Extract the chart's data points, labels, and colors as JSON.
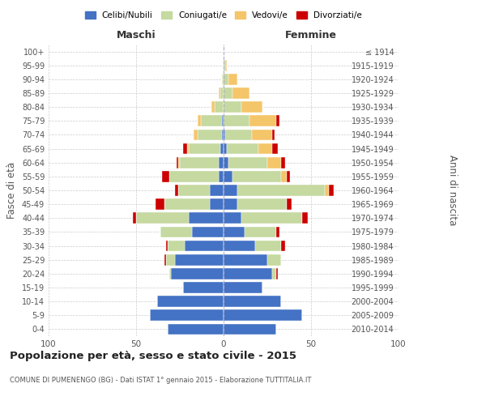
{
  "age_groups": [
    "0-4",
    "5-9",
    "10-14",
    "15-19",
    "20-24",
    "25-29",
    "30-34",
    "35-39",
    "40-44",
    "45-49",
    "50-54",
    "55-59",
    "60-64",
    "65-69",
    "70-74",
    "75-79",
    "80-84",
    "85-89",
    "90-94",
    "95-99",
    "100+"
  ],
  "birth_years": [
    "2010-2014",
    "2005-2009",
    "2000-2004",
    "1995-1999",
    "1990-1994",
    "1985-1989",
    "1980-1984",
    "1975-1979",
    "1970-1974",
    "1965-1969",
    "1960-1964",
    "1955-1959",
    "1950-1954",
    "1945-1949",
    "1940-1944",
    "1935-1939",
    "1930-1934",
    "1925-1929",
    "1920-1924",
    "1915-1919",
    "≤ 1914"
  ],
  "colors": {
    "celibi": "#4472c4",
    "coniugati": "#c5d9a0",
    "vedovi": "#f5c56a",
    "divorziati": "#cc0000",
    "background": "#ffffff",
    "grid": "#cccccc",
    "dashed_line": "#aaaacc"
  },
  "maschi": {
    "celibi": [
      32,
      42,
      38,
      23,
      30,
      28,
      22,
      18,
      20,
      8,
      8,
      3,
      3,
      2,
      1,
      1,
      0,
      0,
      0,
      0,
      0
    ],
    "coniugati": [
      0,
      0,
      0,
      0,
      1,
      5,
      10,
      18,
      30,
      26,
      18,
      28,
      22,
      18,
      14,
      12,
      5,
      2,
      1,
      0,
      0
    ],
    "vedovi": [
      0,
      0,
      0,
      0,
      0,
      0,
      0,
      0,
      0,
      0,
      0,
      0,
      1,
      1,
      2,
      2,
      2,
      1,
      0,
      0,
      0
    ],
    "divorziati": [
      0,
      0,
      0,
      0,
      0,
      1,
      1,
      0,
      2,
      5,
      2,
      4,
      1,
      2,
      0,
      0,
      0,
      0,
      0,
      0,
      0
    ]
  },
  "femmine": {
    "celibi": [
      30,
      45,
      33,
      22,
      28,
      25,
      18,
      12,
      10,
      8,
      8,
      5,
      3,
      2,
      1,
      0,
      0,
      0,
      0,
      0,
      0
    ],
    "coniugati": [
      0,
      0,
      0,
      0,
      2,
      8,
      15,
      18,
      35,
      28,
      50,
      28,
      22,
      18,
      15,
      15,
      10,
      5,
      3,
      1,
      0
    ],
    "vedovi": [
      0,
      0,
      0,
      0,
      0,
      0,
      0,
      0,
      0,
      0,
      2,
      3,
      8,
      8,
      12,
      15,
      12,
      10,
      5,
      1,
      0
    ],
    "divorziati": [
      0,
      0,
      0,
      0,
      1,
      0,
      2,
      2,
      3,
      3,
      3,
      2,
      2,
      3,
      1,
      2,
      0,
      0,
      0,
      0,
      0
    ]
  },
  "xlim": 100,
  "title": "Popolazione per età, sesso e stato civile - 2015",
  "subtitle": "COMUNE DI PUMENENGO (BG) - Dati ISTAT 1° gennaio 2015 - Elaborazione TUTTITALIA.IT",
  "ylabel_left": "Fasce di età",
  "ylabel_right": "Anni di nascita",
  "xlabel_left": "Maschi",
  "xlabel_right": "Femmine",
  "legend_labels": [
    "Celibi/Nubili",
    "Coniugati/e",
    "Vedovi/e",
    "Divorziati/e"
  ]
}
